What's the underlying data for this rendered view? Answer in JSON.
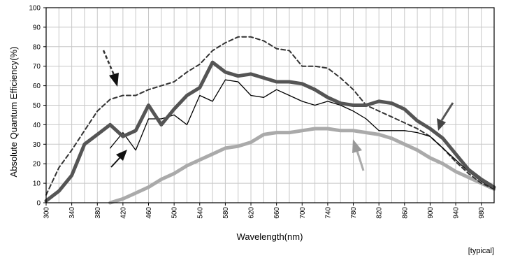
{
  "chart_data": {
    "type": "line",
    "title": "",
    "xlabel": "Wavelength(nm)",
    "ylabel": "Absolute Quantum Efficiency(%)",
    "note": "[typical]",
    "xlim": [
      300,
      1000
    ],
    "ylim": [
      0,
      100
    ],
    "grid": true,
    "x_ticks": [
      "300",
      "340",
      "380",
      "420",
      "460",
      "500",
      "540",
      "580",
      "620",
      "660",
      "700",
      "740",
      "780",
      "820",
      "860",
      "900",
      "940",
      "980"
    ],
    "y_ticks": [
      "0",
      "10",
      "20",
      "30",
      "40",
      "50",
      "60",
      "70",
      "80",
      "90",
      "100"
    ],
    "series": [
      {
        "style": "dashed",
        "color": "#333333",
        "x": [
          300,
          320,
          340,
          360,
          380,
          400,
          420,
          440,
          460,
          480,
          500,
          520,
          540,
          560,
          580,
          600,
          620,
          640,
          660,
          680,
          700,
          720,
          740,
          760,
          780,
          800,
          820,
          840,
          860,
          880,
          900,
          920,
          940,
          960,
          980,
          1000
        ],
        "y": [
          4,
          18,
          27,
          37,
          47,
          53,
          55,
          55,
          58,
          60,
          62,
          67,
          71,
          78,
          82,
          85,
          85,
          83,
          79,
          78,
          70,
          70,
          69,
          64,
          58,
          50,
          47,
          44,
          41,
          38,
          34,
          28,
          21,
          15,
          10,
          7
        ]
      },
      {
        "style": "solid-thick",
        "color": "#555555",
        "x": [
          300,
          320,
          340,
          360,
          380,
          400,
          420,
          440,
          460,
          480,
          500,
          520,
          540,
          560,
          580,
          600,
          620,
          640,
          660,
          680,
          700,
          720,
          740,
          760,
          780,
          800,
          820,
          840,
          860,
          880,
          900,
          920,
          940,
          960,
          980,
          1000
        ],
        "y": [
          1,
          6,
          14,
          30,
          35,
          40,
          34,
          37,
          50,
          40,
          48,
          55,
          59,
          72,
          67,
          65,
          66,
          64,
          62,
          62,
          61,
          58,
          54,
          51,
          50,
          50,
          52,
          51,
          48,
          42,
          38,
          33,
          25,
          17,
          12,
          8
        ]
      },
      {
        "style": "solid-thin",
        "color": "#000000",
        "x": [
          400,
          420,
          440,
          460,
          480,
          500,
          520,
          540,
          560,
          580,
          600,
          620,
          640,
          660,
          680,
          700,
          720,
          740,
          760,
          780,
          800,
          820,
          840,
          860,
          880,
          900,
          920,
          940,
          960,
          980,
          1000
        ],
        "y": [
          28,
          36,
          27,
          43,
          43,
          45,
          40,
          55,
          52,
          63,
          62,
          55,
          54,
          58,
          55,
          52,
          50,
          52,
          50,
          47,
          43,
          37,
          37,
          37,
          36,
          34,
          28,
          22,
          16,
          11,
          7
        ]
      },
      {
        "style": "solid-thick",
        "color": "#aaaaaa",
        "x": [
          400,
          420,
          440,
          460,
          480,
          500,
          520,
          540,
          560,
          580,
          600,
          620,
          640,
          660,
          680,
          700,
          720,
          740,
          760,
          780,
          800,
          820,
          840,
          860,
          880,
          900,
          920,
          940,
          960,
          980,
          1000
        ],
        "y": [
          0,
          2,
          5,
          8,
          12,
          15,
          19,
          22,
          25,
          28,
          29,
          31,
          35,
          36,
          36,
          37,
          38,
          38,
          37,
          37,
          36,
          35,
          33,
          30,
          27,
          23,
          20,
          16,
          13,
          10,
          7
        ]
      }
    ]
  }
}
